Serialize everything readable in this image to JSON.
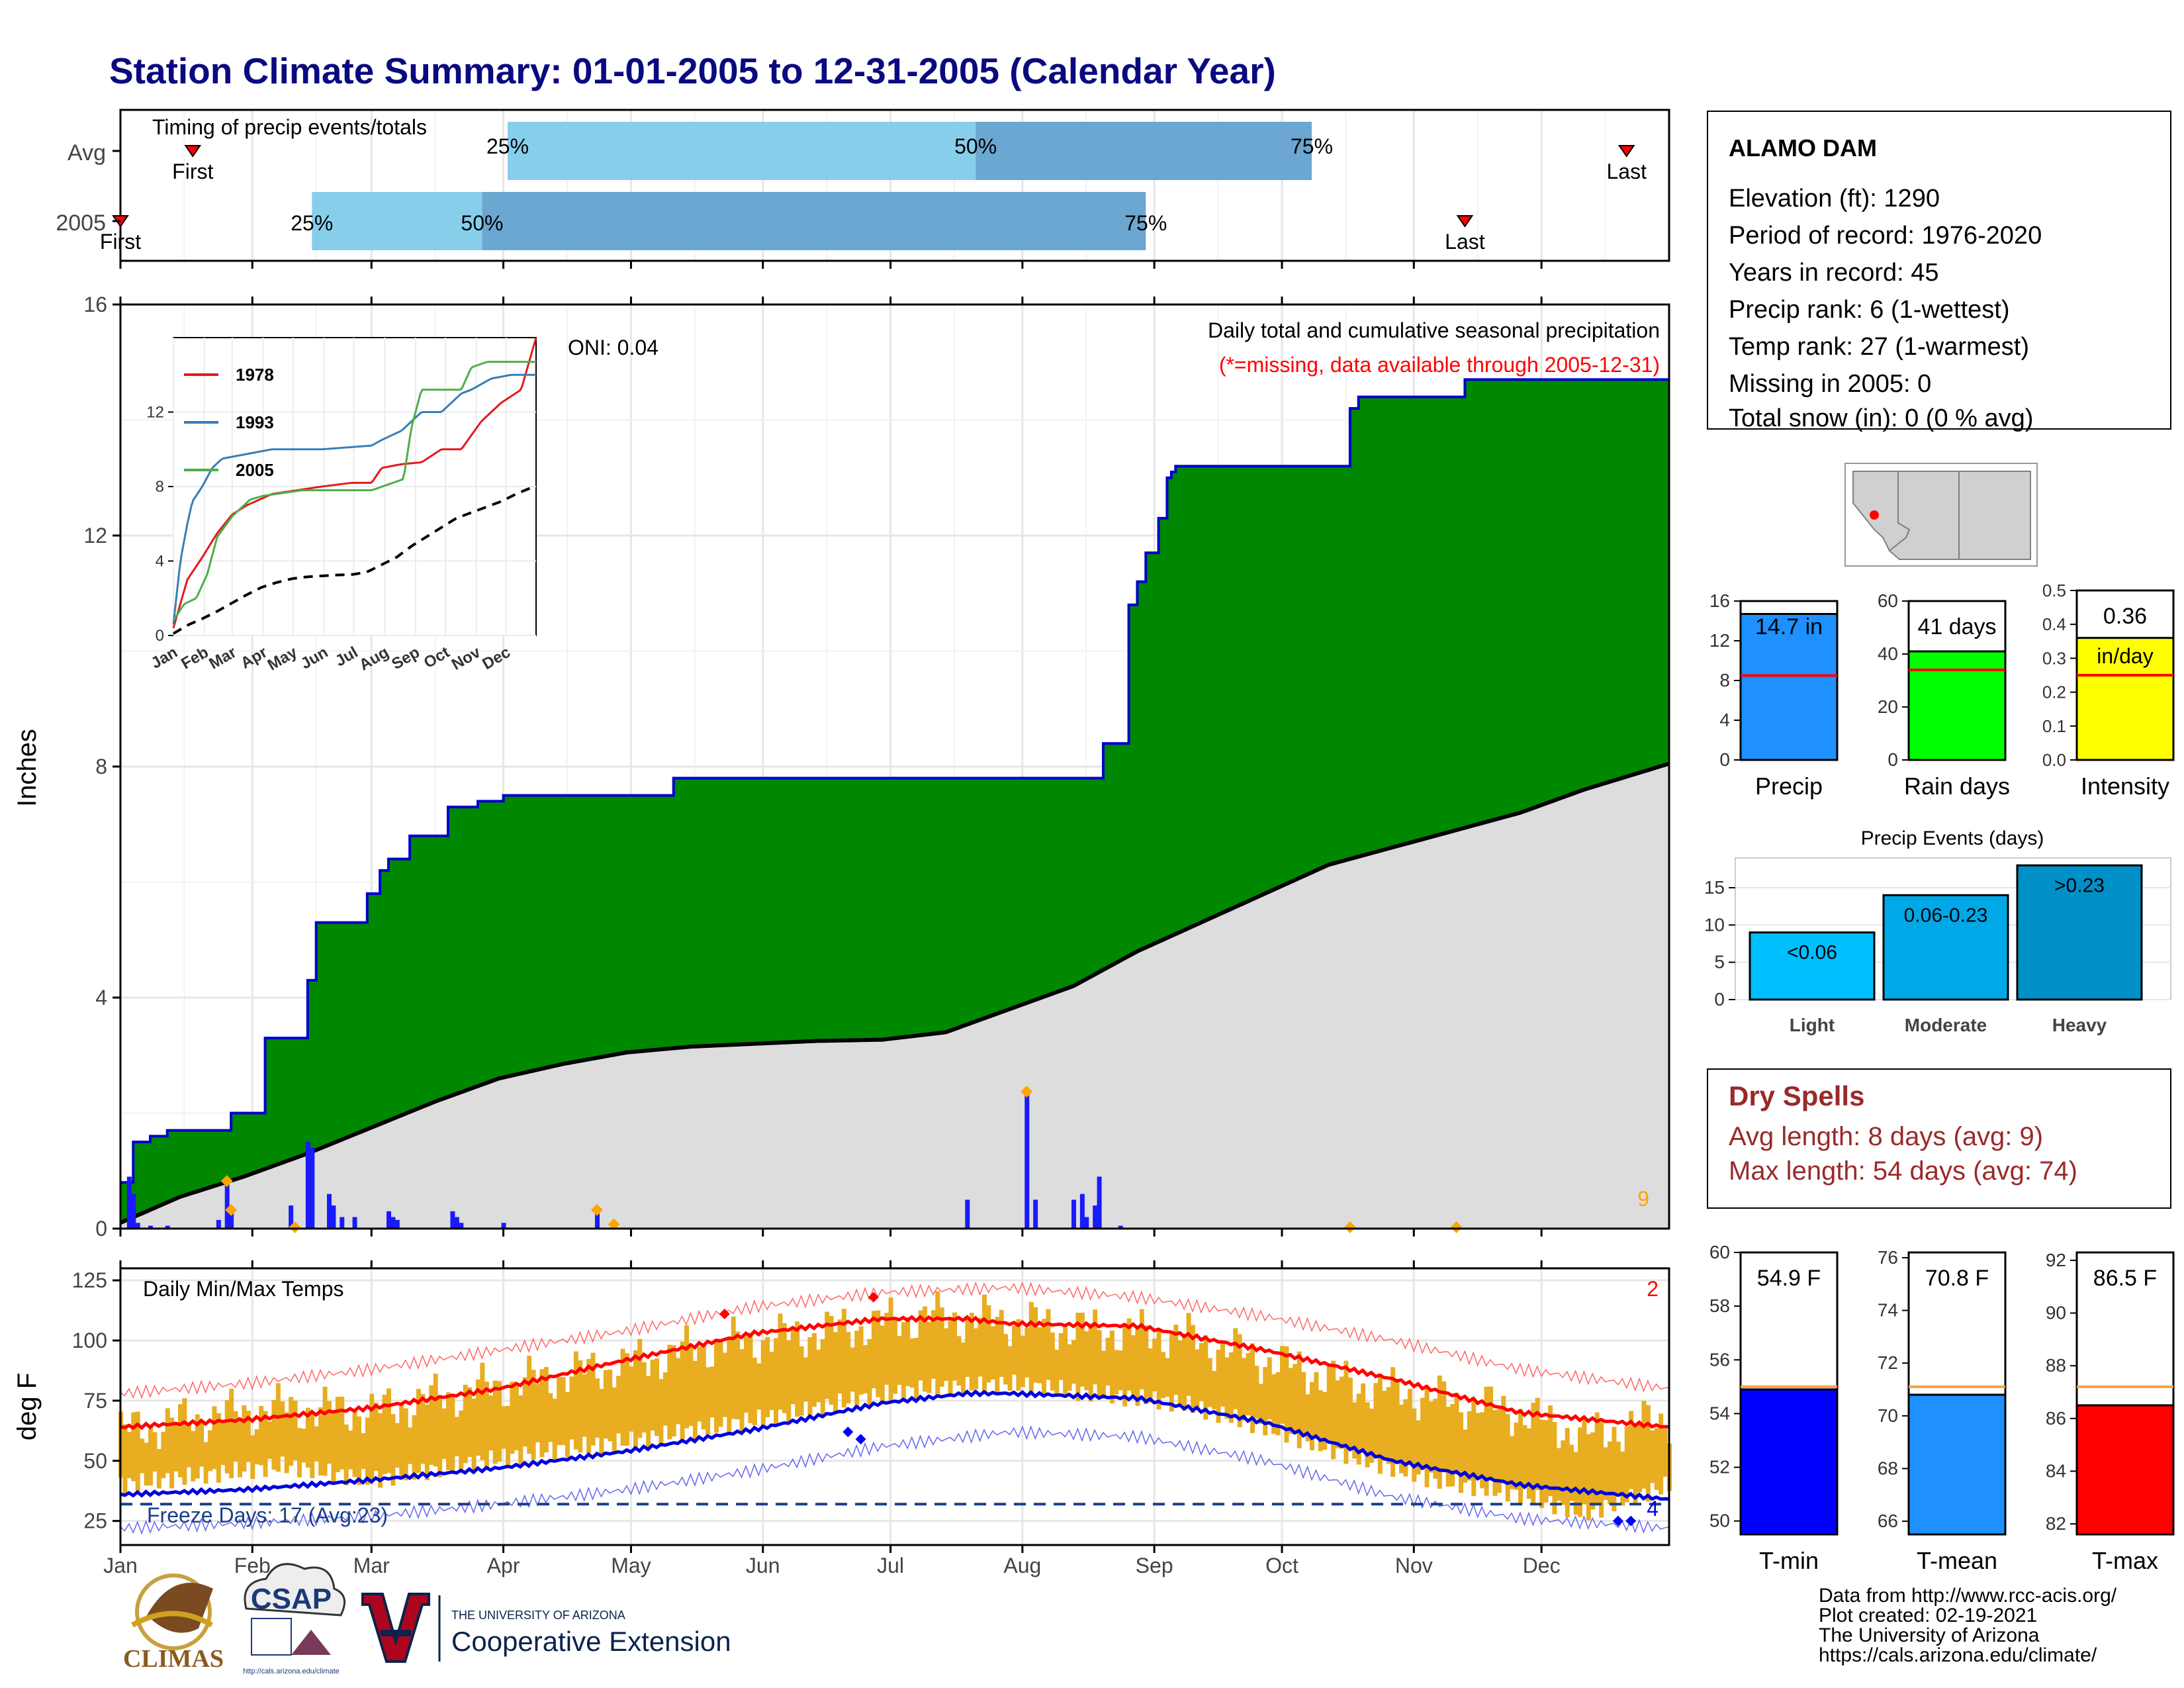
{
  "page_title": "Station Climate Summary: 01-01-2005 to 12-31-2005 (Calendar Year)",
  "colors": {
    "title": "#0a0a80",
    "precip_fill": "#008800",
    "precip_line": "#0000cc",
    "avg_fill": "#dddddd",
    "daily_bars": "#1a1aff",
    "marker": "#ffa500",
    "light_blue": "#87ceeb",
    "mid_blue": "#6ba7d0",
    "temp_range": "#e8ad20",
    "tmax_line": "#ff0000",
    "tmin_line": "#0000dd",
    "red_text": "#ff0000",
    "dry_spell_text": "#9a2a2a"
  },
  "timing_panel": {
    "title": "Timing of precip events/totals",
    "rows": [
      {
        "label": "Avg",
        "first_doy": 18,
        "q25": 92,
        "q50": 202,
        "q75": 281,
        "last_doy": 355,
        "first_label": "First",
        "last_label": "Last",
        "q25_label": "25%",
        "q50_label": "50%",
        "q75_label": "75%"
      },
      {
        "label": "2005",
        "first_doy": 1,
        "q25": 46,
        "q50": 86,
        "q75": 242,
        "last_doy": 317,
        "first_label": "First",
        "last_label": "Last",
        "q25_label": "25%",
        "q50_label": "50%",
        "q75_label": "75%"
      }
    ]
  },
  "precip_panel": {
    "ylabel": "Inches",
    "yticks": [
      "0",
      "4",
      "8",
      "12",
      "16"
    ],
    "title": "Daily total and cumulative seasonal precipitation",
    "subtitle": "(*=missing, data available through 2005-12-31)",
    "oni": "ONI: 0.04",
    "count_label": "9"
  },
  "inset": {
    "yticks": [
      "0",
      "4",
      "8",
      "12"
    ],
    "months": [
      "Jan",
      "Feb",
      "Mar",
      "Apr",
      "May",
      "Jun",
      "Jul",
      "Aug",
      "Sep",
      "Oct",
      "Nov",
      "Dec"
    ],
    "legend": [
      {
        "name": "1978",
        "color": "#e41a1c"
      },
      {
        "name": "1993",
        "color": "#377eb8"
      },
      {
        "name": "2005",
        "color": "#4daf4a"
      }
    ]
  },
  "temp_panel": {
    "ylabel": "deg F",
    "title": "Daily Min/Max Temps",
    "yticks": [
      "25",
      "50",
      "75",
      "100",
      "125"
    ],
    "freeze_label": "Freeze Days: 17 (Avg:23)",
    "count_top": "2",
    "count_bottom": "4"
  },
  "months": [
    "Jan",
    "Feb",
    "Mar",
    "Apr",
    "May",
    "Jun",
    "Jul",
    "Aug",
    "Sep",
    "Oct",
    "Nov",
    "Dec"
  ],
  "station": {
    "name": "ALAMO DAM",
    "lines": [
      "Elevation (ft): 1290",
      "Period of record: 1976-2020",
      "Years in record: 45",
      "Precip rank: 6 (1-wettest)",
      "Temp rank: 27 (1-warmest)",
      "Missing in 2005: 0",
      "Total snow (in): 0 (0 % avg)"
    ]
  },
  "dry_spells": {
    "title": "Dry Spells",
    "avg": "Avg length: 8 days (avg: 9)",
    "max": "Max length: 54 days (avg: 74)"
  },
  "events_panel": {
    "title": "Precip Events (days)",
    "yticks": [
      "0",
      "5",
      "10",
      "15"
    ]
  },
  "footer": {
    "lines": [
      "Data from http://www.rcc-acis.org/",
      "Plot created: 02-19-2021",
      "The University of Arizona",
      "https://cals.arizona.edu/climate/"
    ],
    "climas": "CLIMAS",
    "csap": "CSAP",
    "csap_url": "http://cals.arizona.edu/climate",
    "ua_small": "THE UNIVERSITY OF ARIZONA",
    "ua_big": "Cooperative Extension"
  },
  "chart_data": [
    {
      "type": "area",
      "title": "Daily total and cumulative seasonal precipitation",
      "xlabel": "",
      "ylabel": "Inches",
      "ylim": [
        0,
        16
      ],
      "xlim": [
        1,
        365
      ],
      "series": [
        {
          "name": "2005 cumulative",
          "x": [
            1,
            4,
            8,
            12,
            24,
            27,
            35,
            41,
            45,
            47,
            57,
            59,
            62,
            64,
            69,
            72,
            78,
            83,
            85,
            90,
            91,
            130,
            131,
            180,
            232,
            238,
            240,
            242,
            245,
            247,
            248,
            249,
            250,
            252,
            255,
            256,
            257,
            262,
            268,
            287,
            289,
            290,
            292,
            316,
            317,
            365
          ],
          "y": [
            0.8,
            1.5,
            1.6,
            1.7,
            1.7,
            2.0,
            3.3,
            3.3,
            4.3,
            5.3,
            5.3,
            5.8,
            6.2,
            6.4,
            6.8,
            6.8,
            7.3,
            7.3,
            7.4,
            7.4,
            7.5,
            7.5,
            7.8,
            7.8,
            8.4,
            10.8,
            11.2,
            11.7,
            12.3,
            13.0,
            13.1,
            13.2,
            13.2,
            13.2,
            13.2,
            13.2,
            13.2,
            13.2,
            13.2,
            13.2,
            13.2,
            14.2,
            14.4,
            14.4,
            14.7,
            14.7
          ]
        },
        {
          "name": "average cumulative",
          "x": [
            1,
            15,
            30,
            45,
            60,
            75,
            90,
            105,
            120,
            135,
            150,
            165,
            180,
            195,
            210,
            225,
            240,
            255,
            270,
            285,
            300,
            315,
            330,
            345,
            365
          ],
          "y": [
            0.1,
            0.55,
            0.9,
            1.3,
            1.75,
            2.2,
            2.6,
            2.85,
            3.05,
            3.15,
            3.2,
            3.25,
            3.27,
            3.4,
            3.8,
            4.2,
            4.8,
            5.3,
            5.8,
            6.3,
            6.6,
            6.9,
            7.2,
            7.6,
            8.05
          ]
        }
      ],
      "daily_bars": {
        "x": [
          3,
          4,
          5,
          8,
          12,
          24,
          26,
          27,
          41,
          45,
          46,
          50,
          51,
          53,
          56,
          64,
          65,
          66,
          79,
          80,
          81,
          91,
          113,
          117,
          200,
          214,
          216,
          225,
          227,
          228,
          230,
          231,
          236
        ],
        "y": [
          0.9,
          0.6,
          0.1,
          0.05,
          0.05,
          0.15,
          0.8,
          0.3,
          0.4,
          1.5,
          1.4,
          0.6,
          0.4,
          0.2,
          0.2,
          0.3,
          0.2,
          0.15,
          0.3,
          0.2,
          0.1,
          0.1,
          0.3,
          0.05,
          0.5,
          2.35,
          0.5,
          0.5,
          0.6,
          0.2,
          0.4,
          0.9,
          0.05
        ]
      },
      "markers_x": [
        26,
        27,
        42,
        113,
        117,
        214,
        290,
        315
      ]
    },
    {
      "type": "line",
      "title": "Daily Min/Max Temps",
      "ylabel": "deg F",
      "ylim": [
        15,
        130
      ],
      "xlim": [
        1,
        365
      ],
      "series": [
        {
          "name": "normal max",
          "x": [
            1,
            30,
            60,
            90,
            120,
            150,
            180,
            200,
            210,
            240,
            270,
            300,
            330,
            365
          ],
          "y": [
            64,
            67,
            72,
            80,
            92,
            103,
            109,
            109,
            107,
            106,
            96,
            84,
            70,
            64
          ]
        },
        {
          "name": "normal min",
          "x": [
            1,
            30,
            60,
            90,
            120,
            150,
            180,
            200,
            210,
            240,
            270,
            300,
            330,
            365
          ],
          "y": [
            36,
            38,
            42,
            47,
            54,
            63,
            74,
            78,
            78,
            76,
            66,
            50,
            40,
            34
          ]
        },
        {
          "name": "record max",
          "x": [
            1,
            30,
            60,
            90,
            120,
            150,
            180,
            210,
            240,
            270,
            300,
            330,
            365
          ],
          "y": [
            78,
            82,
            88,
            96,
            104,
            114,
            120,
            122,
            118,
            110,
            100,
            88,
            80
          ]
        },
        {
          "name": "record min",
          "x": [
            1,
            30,
            60,
            90,
            120,
            150,
            180,
            210,
            240,
            270,
            300,
            330,
            365
          ],
          "y": [
            22,
            24,
            27,
            32,
            38,
            46,
            56,
            62,
            60,
            50,
            35,
            26,
            22
          ]
        },
        {
          "name": "2005 max",
          "x": [
            1,
            20,
            40,
            60,
            80,
            100,
            120,
            140,
            160,
            175,
            190,
            210,
            230,
            250,
            270,
            290,
            310,
            330,
            345,
            365
          ],
          "y": [
            62,
            68,
            72,
            70,
            78,
            84,
            90,
            98,
            102,
            106,
            110,
            108,
            104,
            102,
            92,
            82,
            76,
            70,
            60,
            68
          ]
        },
        {
          "name": "2005 min",
          "x": [
            1,
            20,
            40,
            60,
            80,
            100,
            120,
            140,
            160,
            175,
            190,
            210,
            230,
            250,
            270,
            290,
            310,
            330,
            345,
            365
          ],
          "y": [
            40,
            44,
            48,
            42,
            48,
            54,
            58,
            64,
            70,
            76,
            80,
            82,
            78,
            74,
            64,
            52,
            42,
            36,
            28,
            40
          ]
        }
      ],
      "freeze_threshold": 32
    },
    {
      "type": "bar",
      "categories": [
        "Precip"
      ],
      "values": [
        14.7
      ],
      "average": 8.5,
      "ylim": [
        0,
        16
      ],
      "value_label": "14.7 in",
      "yticks": [
        "0",
        "4",
        "8",
        "12",
        "16"
      ],
      "color": "#1e90ff"
    },
    {
      "type": "bar",
      "categories": [
        "Rain days"
      ],
      "values": [
        41
      ],
      "average": 34,
      "ylim": [
        0,
        60
      ],
      "value_label": "41 days",
      "yticks": [
        "0",
        "20",
        "40",
        "60"
      ],
      "color": "#00ff00"
    },
    {
      "type": "bar",
      "categories": [
        "Intensity"
      ],
      "values": [
        0.36
      ],
      "average": 0.25,
      "ylim": [
        0,
        0.5
      ],
      "value_label": "0.36",
      "unit_label": "in/day",
      "yticks": [
        "0.0",
        "0.1",
        "0.2",
        "0.3",
        "0.4",
        "0.5"
      ],
      "color": "#ffff00"
    },
    {
      "type": "bar",
      "title": "Precip Events (days)",
      "categories": [
        "Light",
        "Moderate",
        "Heavy"
      ],
      "values": [
        9,
        14,
        18
      ],
      "bar_labels": [
        "<0.06",
        "0.06-0.23",
        ">0.23"
      ],
      "colors": [
        "#00bfff",
        "#00a8e8",
        "#0090c8"
      ],
      "ylim": [
        0,
        19
      ]
    },
    {
      "type": "bar",
      "categories": [
        "T-min"
      ],
      "values": [
        54.9
      ],
      "average": 55.0,
      "ylim": [
        49.5,
        60
      ],
      "value_label": "54.9 F",
      "yticks": [
        "50",
        "52",
        "54",
        "56",
        "58",
        "60"
      ],
      "color": "#0000ff"
    },
    {
      "type": "bar",
      "categories": [
        "T-mean"
      ],
      "values": [
        70.8
      ],
      "average": 71.1,
      "ylim": [
        65.5,
        76.2
      ],
      "value_label": "70.8 F",
      "yticks": [
        "66",
        "68",
        "70",
        "72",
        "74",
        "76"
      ],
      "color": "#1e90ff"
    },
    {
      "type": "bar",
      "categories": [
        "T-max"
      ],
      "values": [
        86.5
      ],
      "average": 87.2,
      "ylim": [
        81.6,
        92.3
      ],
      "value_label": "86.5 F",
      "yticks": [
        "82",
        "84",
        "86",
        "88",
        "90",
        "92"
      ],
      "color": "#ff0000"
    }
  ]
}
